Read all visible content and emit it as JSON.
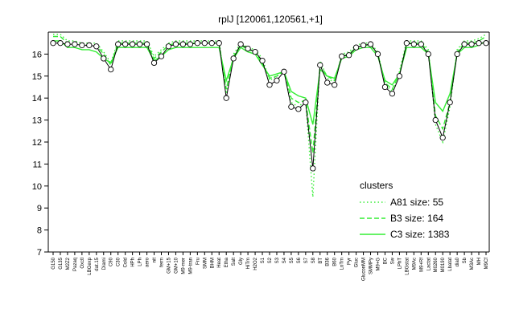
{
  "chart_data": {
    "type": "line",
    "title": "rplJ [120061,120561,+1]",
    "xlabel": "",
    "ylabel": "",
    "ylim": [
      7,
      17
    ],
    "yticks": [
      7,
      8,
      9,
      10,
      11,
      12,
      13,
      14,
      15,
      16
    ],
    "grid": false,
    "legend": {
      "title": "clusters",
      "placement": "bottom-right",
      "entries": [
        {
          "label": "A81 size: 55",
          "style": "dotted",
          "color": "#33ee33"
        },
        {
          "label": "B3 size: 164",
          "style": "dashed",
          "color": "#33ee33"
        },
        {
          "label": "C3 size: 1383",
          "style": "solid",
          "color": "#33ee33"
        }
      ]
    },
    "categories": [
      "G150",
      "G135",
      "M2Z2",
      "Pazaq",
      "Oxctl",
      "LBGexp",
      "dat.15",
      "Diami",
      "C90",
      "C30",
      "Cold",
      "HPh",
      "LPh",
      "aero",
      "nit",
      "ferm",
      "GM+15",
      "GM+10",
      "M9-mer",
      "M9-tran",
      "Fru",
      "SMM",
      "BHM",
      "Heat",
      "Etha",
      "Salt",
      "Gly",
      "HiTm",
      "H2O2",
      "S1",
      "S2",
      "S3",
      "S4",
      "S5",
      "S6",
      "S7",
      "S8",
      "BT",
      "B36",
      "B60",
      "LoTm",
      "Pyr",
      "Gluc",
      "GluconMM",
      "SMMPy",
      "M9+G",
      "BC",
      "Sw",
      "LPhT",
      "LBGstat",
      "M9Ac",
      "M9+Rf",
      "Lactat",
      "M0260",
      "M0190",
      "Lbatat",
      "dia0",
      "Sb",
      "M3Ac",
      "MH",
      "M9Cf"
    ],
    "series": [
      {
        "name": "",
        "style": "points",
        "values": [
          16.5,
          16.5,
          16.45,
          16.45,
          16.4,
          16.4,
          16.35,
          15.8,
          15.3,
          16.45,
          16.45,
          16.45,
          16.45,
          16.45,
          15.6,
          15.9,
          16.35,
          16.45,
          16.45,
          16.45,
          16.5,
          16.5,
          16.5,
          16.5,
          14.0,
          15.8,
          16.45,
          16.25,
          16.1,
          15.7,
          14.6,
          14.8,
          15.2,
          13.6,
          13.5,
          13.8,
          10.8,
          15.5,
          14.7,
          14.6,
          15.9,
          15.95,
          16.3,
          16.4,
          16.45,
          16.0,
          14.5,
          14.2,
          15.0,
          16.5,
          16.45,
          16.45,
          16.0,
          13.0,
          12.2,
          13.8,
          16.0,
          16.45,
          16.45,
          16.5,
          16.5
        ]
      },
      {
        "name": "",
        "style": "dotted",
        "values": [
          16.9,
          16.9,
          16.6,
          16.6,
          16.5,
          16.5,
          16.5,
          16.1,
          15.6,
          16.6,
          16.6,
          16.6,
          16.6,
          16.6,
          15.9,
          16.2,
          16.5,
          16.6,
          16.6,
          16.6,
          16.6,
          16.6,
          16.6,
          16.6,
          14.2,
          16.0,
          16.5,
          16.3,
          16.2,
          15.8,
          14.8,
          15.0,
          15.3,
          13.8,
          13.6,
          13.9,
          9.5,
          15.7,
          14.9,
          14.7,
          16.0,
          16.1,
          16.4,
          16.5,
          16.5,
          16.1,
          14.6,
          14.3,
          15.2,
          16.6,
          16.6,
          16.6,
          16.2,
          12.8,
          12.0,
          13.6,
          16.2,
          16.6,
          16.6,
          16.7,
          16.9
        ]
      },
      {
        "name": "",
        "style": "dashed",
        "values": [
          16.8,
          16.8,
          16.5,
          16.5,
          16.45,
          16.4,
          16.4,
          16.0,
          15.5,
          16.5,
          16.5,
          16.5,
          16.5,
          16.5,
          15.8,
          16.1,
          16.4,
          16.5,
          16.5,
          16.5,
          16.5,
          16.5,
          16.5,
          16.5,
          14.4,
          15.9,
          16.4,
          16.2,
          16.1,
          15.6,
          14.9,
          15.0,
          15.2,
          14.0,
          13.8,
          13.9,
          11.5,
          15.5,
          15.0,
          14.8,
          15.9,
          16.0,
          16.3,
          16.4,
          16.4,
          16.0,
          14.7,
          14.4,
          15.1,
          16.5,
          16.5,
          16.5,
          16.1,
          13.2,
          12.6,
          13.8,
          16.1,
          16.5,
          16.5,
          16.6,
          16.8
        ]
      },
      {
        "name": "",
        "style": "solid",
        "values": [
          16.6,
          16.6,
          16.3,
          16.3,
          16.2,
          16.2,
          16.1,
          15.8,
          15.6,
          16.3,
          16.3,
          16.3,
          16.3,
          16.3,
          15.7,
          15.9,
          16.2,
          16.3,
          16.3,
          16.3,
          16.3,
          16.3,
          16.3,
          16.3,
          14.8,
          15.8,
          16.3,
          16.1,
          16.0,
          15.5,
          15.0,
          15.1,
          15.2,
          14.3,
          14.1,
          14.0,
          12.8,
          15.3,
          15.0,
          14.9,
          15.8,
          15.9,
          16.2,
          16.3,
          16.3,
          15.9,
          14.8,
          14.6,
          15.1,
          16.3,
          16.3,
          16.3,
          16.0,
          13.8,
          13.4,
          14.2,
          16.0,
          16.3,
          16.3,
          16.4,
          16.6
        ]
      }
    ]
  }
}
